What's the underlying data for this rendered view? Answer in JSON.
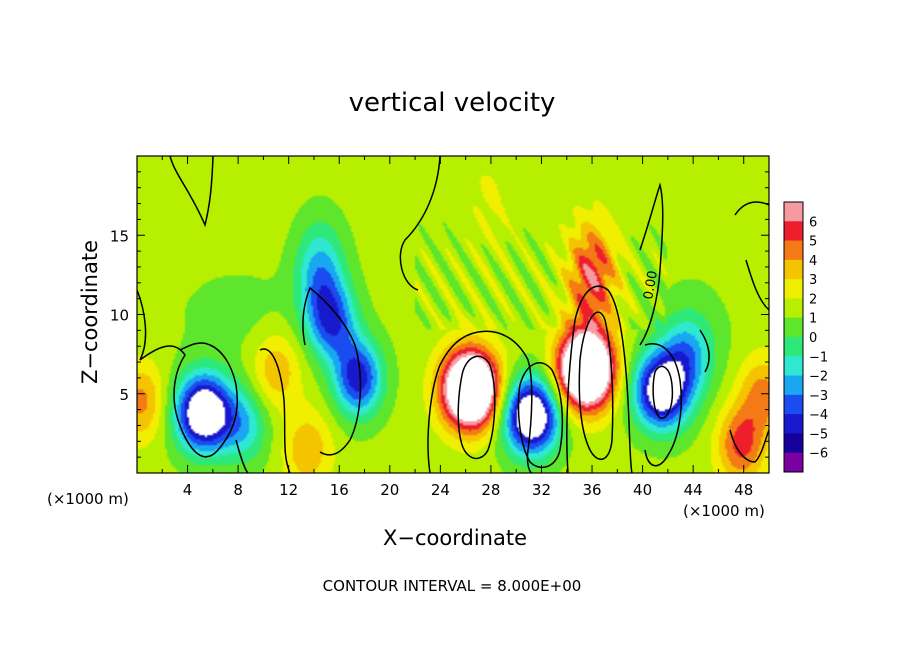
{
  "chart_data": {
    "type": "heatmap",
    "title": "vertical velocity",
    "xlabel": "X−coordinate",
    "ylabel": "Z−coordinate",
    "x_unit": "(×1000 m)",
    "z_unit": "(×1000 m)",
    "xlim": [
      0,
      50
    ],
    "ylim": [
      0,
      20
    ],
    "x_ticks": [
      "4",
      "8",
      "12",
      "16",
      "20",
      "24",
      "28",
      "32",
      "36",
      "40",
      "44",
      "48"
    ],
    "y_ticks": [
      "5",
      "10",
      "15"
    ],
    "colorbar": {
      "ticks": [
        "6",
        "5",
        "4",
        "3",
        "2",
        "1",
        "0",
        "−1",
        "−2",
        "−3",
        "−4",
        "−5",
        "−6"
      ],
      "range": [
        -6,
        6
      ],
      "colors": [
        "#f49aa0",
        "#ee1f2a",
        "#f47a15",
        "#f5c400",
        "#f0ef00",
        "#b6ef00",
        "#5ee62c",
        "#2ee879",
        "#2ee8d2",
        "#1aa7f2",
        "#1a4cf0",
        "#1818cc",
        "#14009a",
        "#7a00a0"
      ]
    },
    "contour_label": "0.00",
    "contour_interval": "CONTOUR INTERVAL = 8.000E+00",
    "features": [
      {
        "x": 5.3,
        "z": 3.8,
        "value": -9
      },
      {
        "x": 8.5,
        "z": 3.0,
        "value": -3
      },
      {
        "x": 15.5,
        "z": 9.5,
        "value": -4.5
      },
      {
        "x": 17.5,
        "z": 6.0,
        "value": -6
      },
      {
        "x": 14.5,
        "z": 12.5,
        "value": -4
      },
      {
        "x": 26.4,
        "z": 5.3,
        "value": 12
      },
      {
        "x": 31.2,
        "z": 3.6,
        "value": -9
      },
      {
        "x": 35.5,
        "z": 6.5,
        "value": 12
      },
      {
        "x": 36.0,
        "z": 12.5,
        "value": 4.5
      },
      {
        "x": 41.5,
        "z": 5.2,
        "value": -8
      },
      {
        "x": 43.5,
        "z": 7.5,
        "value": -3
      },
      {
        "x": 47.8,
        "z": 1.8,
        "value": 4
      },
      {
        "x": 11.0,
        "z": 6.5,
        "value": 2.5
      },
      {
        "x": 13.5,
        "z": 1.5,
        "value": 2.5
      },
      {
        "x": 0.3,
        "z": 4.5,
        "value": 3
      },
      {
        "x": 49.5,
        "z": 5.0,
        "value": 3
      },
      {
        "x": 28.0,
        "z": 17.5,
        "value": 0.8
      }
    ]
  }
}
